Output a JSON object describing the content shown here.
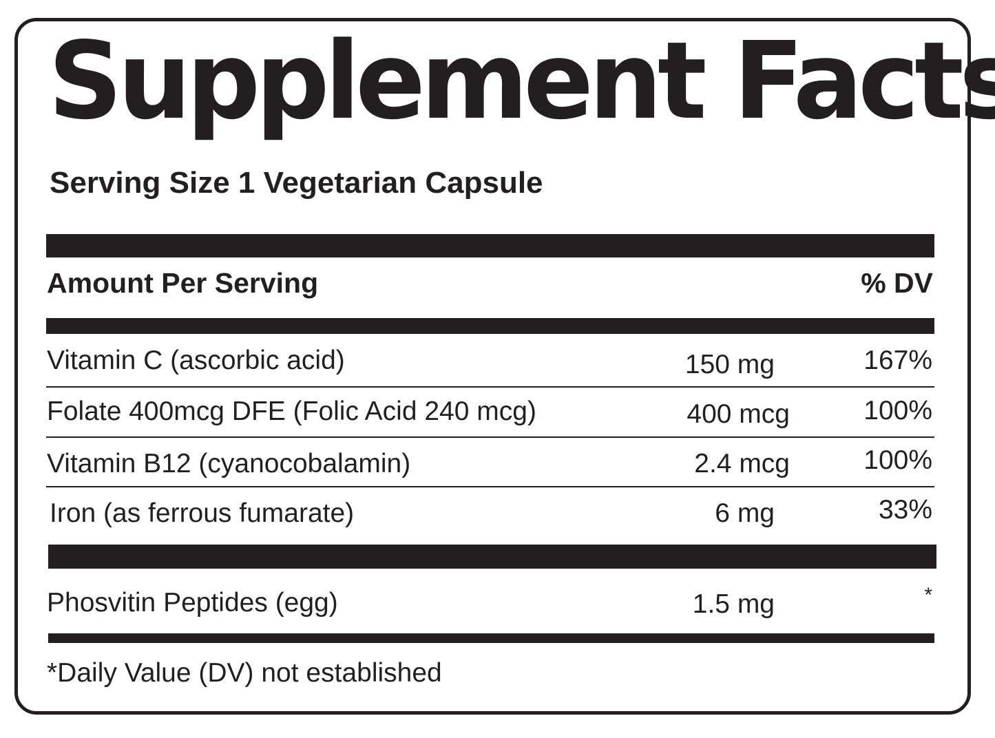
{
  "title": "Supplement Facts",
  "serving_size": "Serving Size 1 Vegetarian Capsule",
  "header": {
    "amount_label": "Amount Per Serving",
    "dv_label": "% DV"
  },
  "nutrients": [
    {
      "name": "Vitamin C (ascorbic acid)",
      "amount": "150 mg",
      "dv": "167%"
    },
    {
      "name": "Folate 400mcg DFE (Folic Acid 240 mcg)",
      "amount": "400 mcg",
      "dv": "100%"
    },
    {
      "name": "Vitamin B12 (cyanocobalamin)",
      "amount": "2.4 mcg",
      "dv": "100%"
    },
    {
      "name": "Iron (as ferrous fumarate)",
      "amount": "6 mg",
      "dv": "33%"
    }
  ],
  "other": [
    {
      "name": "Phosvitin Peptides (egg)",
      "amount": "1.5 mg",
      "dv": "*"
    }
  ],
  "footnote": "*Daily Value (DV) not established"
}
